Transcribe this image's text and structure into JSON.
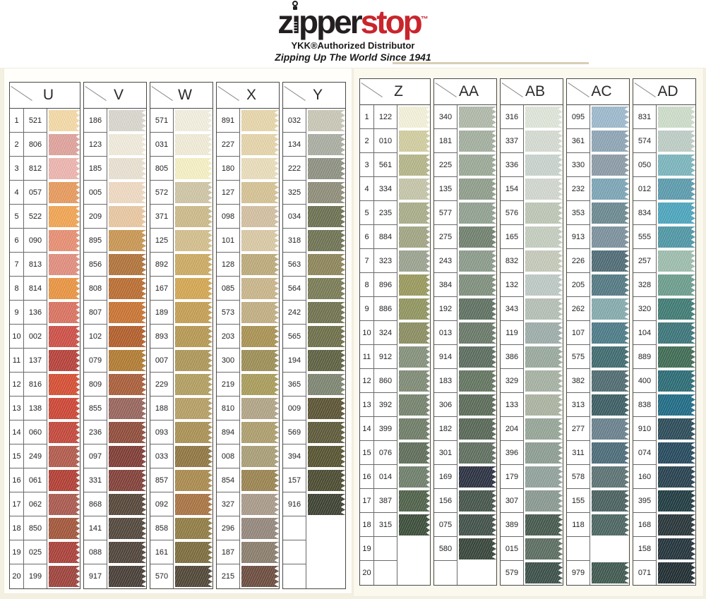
{
  "header": {
    "brand_pre": "z",
    "brand_mid": "pper",
    "brand_stop": "stop",
    "brand_tm": "™",
    "subtitle": "YKK®Authorized Distributor",
    "tagline": "Zipping Up The World Since 1941"
  },
  "colors": {
    "brand_red": "#c9252c",
    "ink": "#231f20"
  },
  "groups": [
    {
      "id": "left-panel",
      "columns": [
        {
          "letter": "U",
          "numbered": true,
          "rows": [
            [
              "521",
              "#F4D9A6"
            ],
            [
              "806",
              "#DFA29B"
            ],
            [
              "812",
              "#EDB4AE"
            ],
            [
              "057",
              "#E79A5C"
            ],
            [
              "522",
              "#F1A452"
            ],
            [
              "090",
              "#E78E72"
            ],
            [
              "813",
              "#E18D7D"
            ],
            [
              "814",
              "#E99440"
            ],
            [
              "136",
              "#DA7260"
            ],
            [
              "002",
              "#CD4F46"
            ],
            [
              "137",
              "#B64139"
            ],
            [
              "816",
              "#D54E32"
            ],
            [
              "138",
              "#CD4534"
            ],
            [
              "060",
              "#C4473A"
            ],
            [
              "249",
              "#B25A4C"
            ],
            [
              "061",
              "#B23E33"
            ],
            [
              "062",
              "#AA594E"
            ],
            [
              "850",
              "#A2563A"
            ],
            [
              "025",
              "#AA4039"
            ],
            [
              "199",
              "#9E423B"
            ]
          ]
        },
        {
          "letter": "V",
          "numbered": false,
          "rows": [
            [
              "186",
              "#D9D6CD"
            ],
            [
              "123",
              "#F0EBDB"
            ],
            [
              "185",
              "#E9E1D1"
            ],
            [
              "005",
              "#EFD9C2"
            ],
            [
              "209",
              "#E9C7A1"
            ],
            [
              "895",
              "#C99652"
            ],
            [
              "856",
              "#B1733A"
            ],
            [
              "808",
              "#BA6D31"
            ],
            [
              "807",
              "#C97432"
            ],
            [
              "102",
              "#B25E2A"
            ],
            [
              "079",
              "#B17B32"
            ],
            [
              "809",
              "#A95E3A"
            ],
            [
              "855",
              "#97655C"
            ],
            [
              "236",
              "#8F4C3A"
            ],
            [
              "097",
              "#7F3C34"
            ],
            [
              "331",
              "#824038"
            ],
            [
              "868",
              "#564639"
            ],
            [
              "141",
              "#52473C"
            ],
            [
              "088",
              "#50443A"
            ],
            [
              "917",
              "#483E37"
            ]
          ]
        },
        {
          "letter": "W",
          "numbered": false,
          "rows": [
            [
              "571",
              "#F2EFDF"
            ],
            [
              "031",
              "#F1ECD7"
            ],
            [
              "805",
              "#F6F0C3"
            ],
            [
              "572",
              "#CFC5A5"
            ],
            [
              "371",
              "#CCBA88"
            ],
            [
              "125",
              "#D3BE8C"
            ],
            [
              "892",
              "#CDAA62"
            ],
            [
              "167",
              "#D3A652"
            ],
            [
              "189",
              "#C59E52"
            ],
            [
              "893",
              "#B69852"
            ],
            [
              "007",
              "#AE9658"
            ],
            [
              "229",
              "#B29E60"
            ],
            [
              "188",
              "#B69E64"
            ],
            [
              "093",
              "#AA9054"
            ],
            [
              "033",
              "#907642"
            ],
            [
              "857",
              "#AA8A4E"
            ],
            [
              "092",
              "#A97342"
            ],
            [
              "858",
              "#907C44"
            ],
            [
              "161",
              "#7C6C3E"
            ],
            [
              "570",
              "#504636"
            ]
          ]
        },
        {
          "letter": "X",
          "numbered": false,
          "rows": [
            [
              "891",
              "#E7D6AA"
            ],
            [
              "227",
              "#E5D4AA"
            ],
            [
              "180",
              "#E9DDBA"
            ],
            [
              "127",
              "#D5C294"
            ],
            [
              "098",
              "#D3BFA0"
            ],
            [
              "101",
              "#D9C9A4"
            ],
            [
              "128",
              "#BDAA7A"
            ],
            [
              "085",
              "#C9B58A"
            ],
            [
              "573",
              "#C1AE82"
            ],
            [
              "203",
              "#A99252"
            ],
            [
              "300",
              "#9D8E56"
            ],
            [
              "219",
              "#A99C5A"
            ],
            [
              "810",
              "#B1A486"
            ],
            [
              "894",
              "#AD9E6C"
            ],
            [
              "008",
              "#A99E76"
            ],
            [
              "854",
              "#9A8450"
            ],
            [
              "327",
              "#A99A8A"
            ],
            [
              "296",
              "#94877C"
            ],
            [
              "187",
              "#8A7E6C"
            ],
            [
              "215",
              "#6C4C3E"
            ]
          ]
        },
        {
          "letter": "Y",
          "numbered": false,
          "rows": [
            [
              "032",
              "#C9C7B5"
            ],
            [
              "134",
              "#A9ADA1"
            ],
            [
              "222",
              "#8D9181"
            ],
            [
              "325",
              "#8F8D79"
            ],
            [
              "034",
              "#6B7151"
            ],
            [
              "318",
              "#6F7353"
            ],
            [
              "563",
              "#8D8559"
            ],
            [
              "564",
              "#797B55"
            ],
            [
              "242",
              "#71724F"
            ],
            [
              "565",
              "#6D6F49"
            ],
            [
              "194",
              "#5D6141"
            ],
            [
              "365",
              "#7D8571"
            ],
            [
              "009",
              "#5B5333"
            ],
            [
              "569",
              "#5D5939"
            ],
            [
              "394",
              "#565330"
            ],
            [
              "157",
              "#4B4B31"
            ],
            [
              "916",
              "#3D4131"
            ],
            [
              "",
              ""
            ],
            [
              "",
              ""
            ],
            [
              "",
              ""
            ]
          ]
        }
      ]
    },
    {
      "id": "right-panel",
      "columns": [
        {
          "letter": "Z",
          "numbered": true,
          "rows": [
            [
              "122",
              "#F3F1D9"
            ],
            [
              "010",
              "#D1CD9F"
            ],
            [
              "561",
              "#B5B589"
            ],
            [
              "334",
              "#C5C5A9"
            ],
            [
              "235",
              "#A9AD89"
            ],
            [
              "884",
              "#A1A583"
            ],
            [
              "323",
              "#9BA38F"
            ],
            [
              "896",
              "#99995D"
            ],
            [
              "886",
              "#91955F"
            ],
            [
              "324",
              "#8B8D61"
            ],
            [
              "912",
              "#85917B"
            ],
            [
              "860",
              "#7F8B75"
            ],
            [
              "392",
              "#75836D"
            ],
            [
              "399",
              "#6F7D67"
            ],
            [
              "076",
              "#5F6D59"
            ],
            [
              "014",
              "#6F7F6B"
            ],
            [
              "387",
              "#4F6149"
            ],
            [
              "315",
              "#3B4D39"
            ],
            [
              "",
              ""
            ],
            [
              "",
              ""
            ]
          ]
        },
        {
          "letter": "AA",
          "numbered": false,
          "rows": [
            [
              "340",
              "#AFB9A9"
            ],
            [
              "181",
              "#A3AF9F"
            ],
            [
              "225",
              "#9BA997"
            ],
            [
              "135",
              "#8F9D8B"
            ],
            [
              "577",
              "#91A191"
            ],
            [
              "275",
              "#71816F"
            ],
            [
              "243",
              "#8B9B8B"
            ],
            [
              "384",
              "#7F8F7D"
            ],
            [
              "192",
              "#5F7161"
            ],
            [
              "013",
              "#697969"
            ],
            [
              "914",
              "#5B6D5F"
            ],
            [
              "183",
              "#637560"
            ],
            [
              "306",
              "#5B6B59"
            ],
            [
              "182",
              "#576756"
            ],
            [
              "301",
              "#5F6F5F"
            ],
            [
              "169",
              "#2B3141"
            ],
            [
              "156",
              "#45554B"
            ],
            [
              "075",
              "#415149"
            ],
            [
              "580",
              "#374539"
            ],
            [
              "",
              ""
            ]
          ]
        },
        {
          "letter": "AB",
          "numbered": false,
          "rows": [
            [
              "316",
              "#DFE5D9"
            ],
            [
              "337",
              "#D5DBD1"
            ],
            [
              "336",
              "#C9D3CD"
            ],
            [
              "154",
              "#D1D7CF"
            ],
            [
              "576",
              "#BDC7B5"
            ],
            [
              "165",
              "#C3CDBF"
            ],
            [
              "832",
              "#C5C9B9"
            ],
            [
              "132",
              "#BDC9C5"
            ],
            [
              "343",
              "#B5BFB5"
            ],
            [
              "119",
              "#9DADA9"
            ],
            [
              "386",
              "#99A99D"
            ],
            [
              "329",
              "#A5B1A3"
            ],
            [
              "133",
              "#ABB3A1"
            ],
            [
              "204",
              "#95A597"
            ],
            [
              "396",
              "#8D9D93"
            ],
            [
              "179",
              "#91A19B"
            ],
            [
              "307",
              "#899991"
            ],
            [
              "389",
              "#45594D"
            ],
            [
              "015",
              "#5B6D61"
            ],
            [
              "579",
              "#3B4F49"
            ]
          ]
        },
        {
          "letter": "AC",
          "numbered": false,
          "rows": [
            [
              "095",
              "#9DB9CD"
            ],
            [
              "361",
              "#8DA5B5"
            ],
            [
              "330",
              "#8B9BA7"
            ],
            [
              "232",
              "#7BA5B5"
            ],
            [
              "353",
              "#6B8991"
            ],
            [
              "913",
              "#7B919D"
            ],
            [
              "226",
              "#4F6B75"
            ],
            [
              "205",
              "#537983"
            ],
            [
              "262",
              "#85ABAD"
            ],
            [
              "107",
              "#4B7B87"
            ],
            [
              "575",
              "#3F6B6F"
            ],
            [
              "382",
              "#4F6B71"
            ],
            [
              "313",
              "#3B5D63"
            ],
            [
              "277",
              "#69818D"
            ],
            [
              "311",
              "#4B6B79"
            ],
            [
              "578",
              "#5B7373"
            ],
            [
              "155",
              "#49615F"
            ],
            [
              "118",
              "#4B6561"
            ],
            [
              "",
              ""
            ],
            [
              "979",
              "#3F594F"
            ]
          ]
        },
        {
          "letter": "AD",
          "numbered": false,
          "rows": [
            [
              "831",
              "#CDDDC9"
            ],
            [
              "574",
              "#BDCDC5"
            ],
            [
              "050",
              "#7BB5BD"
            ],
            [
              "012",
              "#5B9BAD"
            ],
            [
              "834",
              "#4BA5BD"
            ],
            [
              "555",
              "#4F97A5"
            ],
            [
              "257",
              "#9DBDAD"
            ],
            [
              "328",
              "#6B9D8D"
            ],
            [
              "320",
              "#3F7B73"
            ],
            [
              "104",
              "#3B7579"
            ],
            [
              "889",
              "#3F6B53"
            ],
            [
              "400",
              "#2B6B75"
            ],
            [
              "838",
              "#1F6B85"
            ],
            [
              "910",
              "#2B4B59"
            ],
            [
              "074",
              "#25495D"
            ],
            [
              "160",
              "#27414F"
            ],
            [
              "395",
              "#1F3B41"
            ],
            [
              "168",
              "#273539"
            ],
            [
              "158",
              "#23333B"
            ],
            [
              "071",
              "#1F2D31"
            ]
          ]
        }
      ]
    }
  ]
}
